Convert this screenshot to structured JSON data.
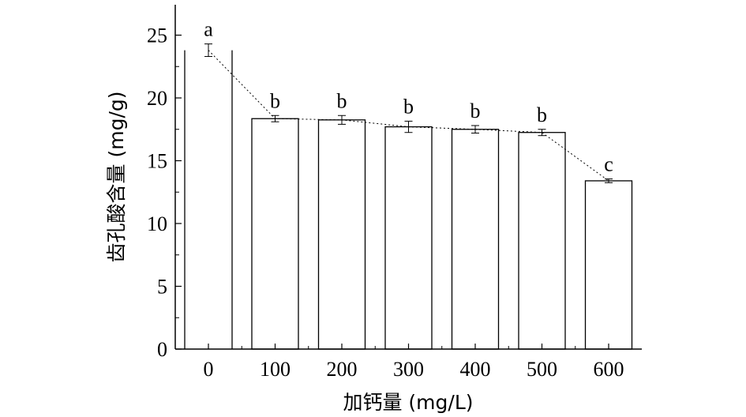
{
  "chart_data": {
    "type": "bar",
    "categories": [
      "0",
      "100",
      "200",
      "300",
      "400",
      "500",
      "600"
    ],
    "values": [
      23.8,
      18.35,
      18.25,
      17.7,
      17.5,
      17.25,
      13.4
    ],
    "errors": [
      0.5,
      0.25,
      0.35,
      0.45,
      0.3,
      0.25,
      0.15
    ],
    "significance": [
      "a",
      "b",
      "b",
      "b",
      "b",
      "b",
      "c"
    ],
    "xlabel": "加钙量 (mg/L)",
    "ylabel": "齿孔酸含量 (mg/g)",
    "ylim": [
      0,
      27.5
    ],
    "yticks": [
      "0",
      "5",
      "10",
      "15",
      "20",
      "25"
    ],
    "trend_line": "dotted",
    "bar_fill": "#ffffff",
    "bar_stroke": "#000000"
  }
}
